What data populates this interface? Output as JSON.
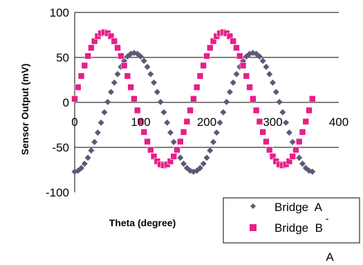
{
  "chart_data": {
    "type": "scatter",
    "title": "",
    "xlabel": "Theta (degree)",
    "ylabel": "Sensor Output (mV)",
    "xlim": [
      0,
      400
    ],
    "ylim": [
      -100,
      100
    ],
    "x_ticks": [
      "0",
      "100",
      "200",
      "300",
      "400"
    ],
    "y_ticks": [
      "100",
      "50",
      "0",
      "-50",
      "-100"
    ],
    "grid": "horizontal",
    "legend_position": "bottom-right",
    "series": [
      {
        "name": "Bridge  A",
        "marker": "diamond",
        "color": "#5a5a78",
        "amplitude": 66,
        "offset": -11,
        "peak_theta": 90,
        "period": 180,
        "theta_start": 0,
        "theta_end": 360,
        "theta_step": 5
      },
      {
        "name": "Bridge  B",
        "marker": "square",
        "color": "#e81e89",
        "amplitude": 74,
        "offset": 4,
        "peak_theta": 45,
        "period": 180,
        "theta_start": 0,
        "theta_end": 360,
        "theta_step": 5
      }
    ]
  },
  "legend": {
    "items": [
      {
        "label": "Bridge  A"
      },
      {
        "label": "Bridge  B"
      }
    ],
    "bar_glyph": "-",
    "overflow_label": "A"
  }
}
